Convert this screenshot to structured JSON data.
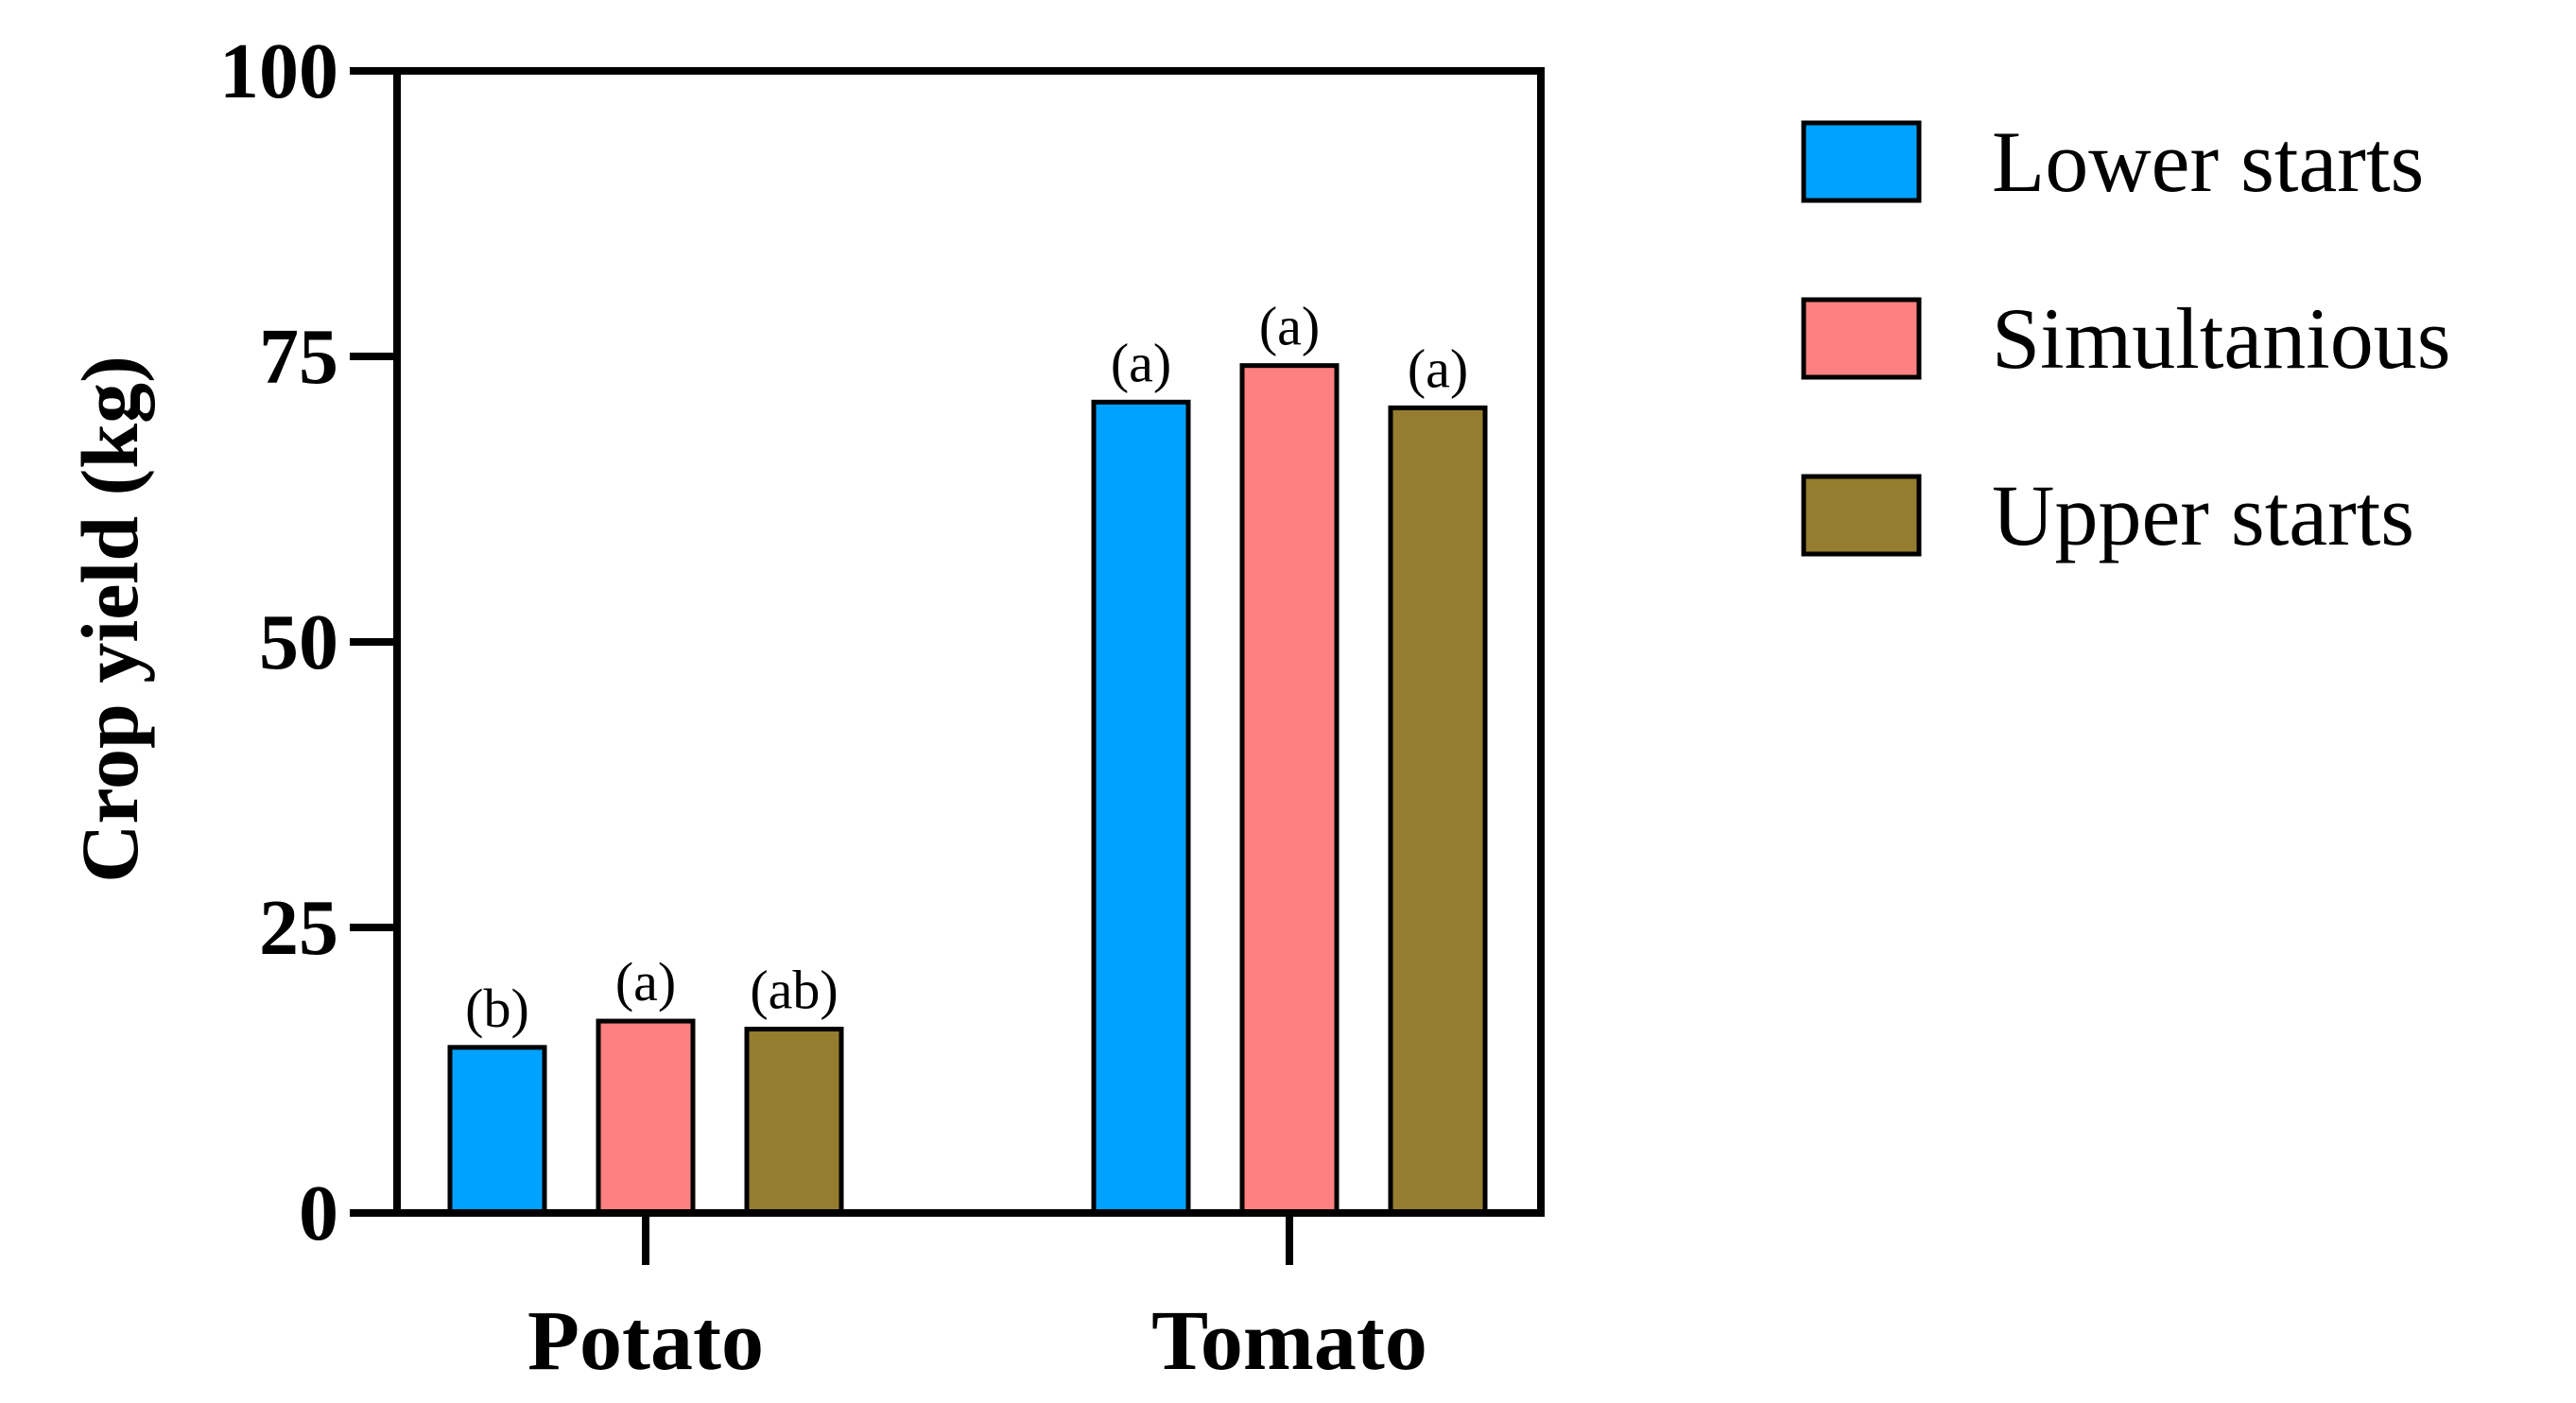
{
  "chart_data": {
    "type": "bar",
    "title": "",
    "xlabel": "",
    "ylabel": "Crop yield (kg)",
    "ylim": [
      0,
      100
    ],
    "yticks": [
      0,
      25,
      50,
      75,
      100
    ],
    "categories": [
      "Potato",
      "Tomato"
    ],
    "series": [
      {
        "name": "Lower starts",
        "color": "#00A2FF",
        "values": [
          14.5,
          71
        ],
        "labels": [
          "(b)",
          "(a)"
        ]
      },
      {
        "name": "Simultanious",
        "color": "#FF8080",
        "values": [
          16.8,
          74.2
        ],
        "labels": [
          "(a)",
          "(a)"
        ]
      },
      {
        "name": "Upper starts",
        "color": "#947D2F",
        "values": [
          16.1,
          70.5
        ],
        "labels": [
          "(ab)",
          "(a)"
        ]
      }
    ],
    "grid": false,
    "legend_position": "right"
  }
}
